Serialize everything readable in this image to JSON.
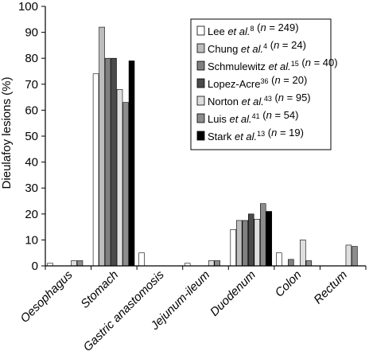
{
  "chart_data": {
    "type": "bar",
    "ylabel": "Dieulafoy lesions (%)",
    "xlabel": "",
    "ylim": [
      0,
      100
    ],
    "yticks": [
      "0",
      "10",
      "20",
      "30",
      "40",
      "50",
      "60",
      "70",
      "80",
      "90",
      "100"
    ],
    "grid": false,
    "legend_position": "top-right",
    "categories": [
      "Oesophagus",
      "Stomach",
      "Gastric anastomosis",
      "Jejunum-ileum",
      "Duodenum",
      "Colon",
      "Rectum"
    ],
    "series": [
      {
        "name": "Lee et al.8 (n = 249)",
        "legend_parts": {
          "author": "Lee ",
          "etal": "et al.",
          "ref": "8",
          "n_prefix": " (",
          "n": "n",
          "n_value": " = 249)"
        },
        "color": "#ffffff",
        "values": [
          1,
          74,
          5,
          1,
          14,
          5,
          0
        ]
      },
      {
        "name": "Chung et al.4 (n = 24)",
        "legend_parts": {
          "author": "Chung ",
          "etal": "et al.",
          "ref": "4",
          "n_prefix": " (",
          "n": "n",
          "n_value": " = 24)"
        },
        "color": "#bdbdbd",
        "values": [
          0,
          92,
          0,
          0,
          17.5,
          0,
          0
        ]
      },
      {
        "name": "Schmulewitz et al.15 (n = 40)",
        "legend_parts": {
          "author": "Schmulewitz ",
          "etal": "et al.",
          "ref": "15",
          "n_prefix": " (",
          "n": "n",
          "n_value": " = 40)"
        },
        "color": "#808080",
        "values": [
          0,
          80,
          0,
          0,
          17.5,
          2.5,
          0
        ]
      },
      {
        "name": "Lopez-Acre36 (n = 20)",
        "legend_parts": {
          "author": "Lopez-Acre",
          "etal": "",
          "ref": "36",
          "n_prefix": " (",
          "n": "n",
          "n_value": " = 20)"
        },
        "color": "#4a4a4a",
        "values": [
          0,
          80,
          0,
          0,
          20,
          0,
          0
        ]
      },
      {
        "name": "Norton et al.43 (n = 95)",
        "legend_parts": {
          "author": "Norton ",
          "etal": "et al.",
          "ref": "43",
          "n_prefix": " (",
          "n": "n",
          "n_value": " = 95)"
        },
        "color": "#dedede",
        "values": [
          2,
          68,
          0,
          2,
          18,
          10,
          8
        ]
      },
      {
        "name": "Luis et al.41 (n = 54)",
        "legend_parts": {
          "author": "Luis ",
          "etal": "et al.",
          "ref": "41",
          "n_prefix": " (",
          "n": "n",
          "n_value": " = 54)"
        },
        "color": "#8c8c8c",
        "values": [
          2,
          63,
          0,
          2,
          24,
          2,
          7.5
        ]
      },
      {
        "name": "Stark et al.13 (n = 19)",
        "legend_parts": {
          "author": "Stark ",
          "etal": "et al.",
          "ref": "13",
          "n_prefix": " (",
          "n": "n",
          "n_value": " = 19)"
        },
        "color": "#000000",
        "values": [
          0,
          79,
          0,
          0,
          21,
          0,
          0
        ]
      }
    ]
  }
}
